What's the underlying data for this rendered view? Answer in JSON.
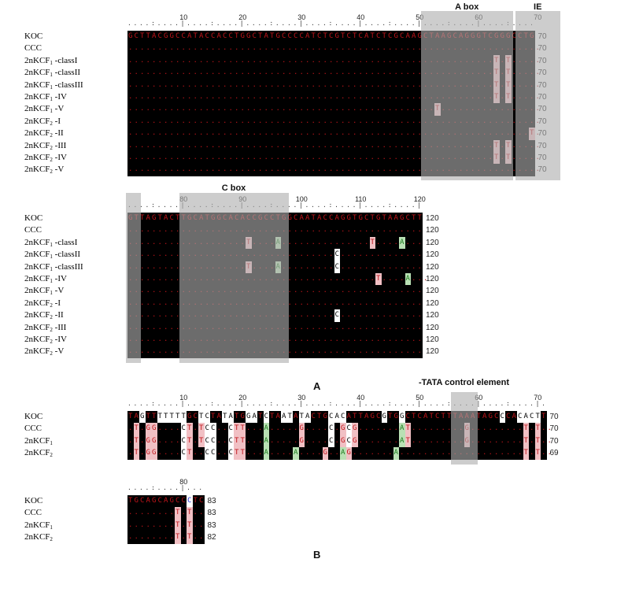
{
  "panel_a": {
    "label": "A",
    "blocks": [
      {
        "id": "a1",
        "ruler_numbers": [
          "10",
          "20",
          "30",
          "40",
          "50",
          "60",
          "70"
        ],
        "regions": [
          {
            "label": "A box",
            "start": 51,
            "end": 65
          },
          {
            "label": "IE",
            "start": 67,
            "end": 73
          }
        ],
        "rows": [
          {
            "name": "KOC",
            "sub": "",
            "suffix": "",
            "seq": "GCTTACGGCCATACCACCTGGCTATGCCCCATCTCGTCTCATCTCGCAAGCTAAGCAGGGTCGGGCCTG",
            "end": "70"
          },
          {
            "name": "CCC",
            "sub": "",
            "suffix": "",
            "seq": "......................................................................",
            "end": "70"
          },
          {
            "name": "2nKCF",
            "sub": "1",
            "suffix": " -classI",
            "seq": "..............................................................T.T.....",
            "end": "70"
          },
          {
            "name": "2nKCF",
            "sub": "1",
            "suffix": " -classII",
            "seq": "..............................................................T.T.....",
            "end": "70"
          },
          {
            "name": "2nKCF",
            "sub": "1",
            "suffix": " -classIII",
            "seq": "..............................................................T.T.....",
            "end": "70"
          },
          {
            "name": "2nKCF",
            "sub": "1",
            "suffix": " -IV",
            "seq": "..............................................................T.T.....",
            "end": "70"
          },
          {
            "name": "2nKCF",
            "sub": "1",
            "suffix": " -V",
            "seq": "....................................................T.................",
            "end": "70"
          },
          {
            "name": "2nKCF",
            "sub": "2",
            "suffix": " -I",
            "seq": "......................................................................",
            "end": "70"
          },
          {
            "name": "2nKCF",
            "sub": "2",
            "suffix": " -II",
            "seq": "....................................................................T.",
            "end": "70"
          },
          {
            "name": "2nKCF",
            "sub": "2",
            "suffix": " -III",
            "seq": "..............................................................T.T.....",
            "end": "70"
          },
          {
            "name": "2nKCF",
            "sub": "2",
            "suffix": " -IV",
            "seq": "..............................................................T.T.....",
            "end": "70"
          },
          {
            "name": "2nKCF",
            "sub": "2",
            "suffix": " -V",
            "seq": "......................................................................",
            "end": "70"
          }
        ]
      },
      {
        "id": "a2",
        "ruler_numbers": [
          "80",
          "90",
          "100",
          "110",
          "120"
        ],
        "regions": [
          {
            "label": "",
            "start": 71,
            "end": 72
          },
          {
            "label": "C box",
            "start": 80,
            "end": 97
          }
        ],
        "rows": [
          {
            "name": "KOC",
            "sub": "",
            "suffix": "",
            "seq": "GTTAGTACTTGCATGGCACACCGCCTGGCAATACCAGGTGCTGTAAGCTT",
            "end": "120"
          },
          {
            "name": "CCC",
            "sub": "",
            "suffix": "",
            "seq": "..................................................",
            "end": "120"
          },
          {
            "name": "2nKCF",
            "sub": "1",
            "suffix": " -classI",
            "seq": "....................T....A...............T....A...",
            "end": "120"
          },
          {
            "name": "2nKCF",
            "sub": "1",
            "suffix": " -classII",
            "seq": "...................................C..............",
            "end": "120"
          },
          {
            "name": "2nKCF",
            "sub": "1",
            "suffix": " -classIII",
            "seq": "....................T....A.........C..............",
            "end": "120"
          },
          {
            "name": "2nKCF",
            "sub": "1",
            "suffix": " -IV",
            "seq": "..........................................T....A...",
            "end": "120"
          },
          {
            "name": "2nKCF",
            "sub": "1",
            "suffix": " -V",
            "seq": "..................................................",
            "end": "120"
          },
          {
            "name": "2nKCF",
            "sub": "2",
            "suffix": " -I",
            "seq": "..................................................",
            "end": "120"
          },
          {
            "name": "2nKCF",
            "sub": "2",
            "suffix": " -II",
            "seq": "...................................C..............",
            "end": "120"
          },
          {
            "name": "2nKCF",
            "sub": "2",
            "suffix": " -III",
            "seq": "..................................................",
            "end": "120"
          },
          {
            "name": "2nKCF",
            "sub": "2",
            "suffix": " -IV",
            "seq": "..................................................",
            "end": "120"
          },
          {
            "name": "2nKCF",
            "sub": "2",
            "suffix": " -V",
            "seq": "..................................................",
            "end": "120"
          }
        ]
      }
    ]
  },
  "panel_b": {
    "label": "B",
    "blocks": [
      {
        "id": "b1",
        "ruler_numbers": [
          "10",
          "20",
          "30",
          "40",
          "50",
          "60",
          "70"
        ],
        "regions": [
          {
            "label": "-TATA control element",
            "start": 56,
            "end": 59
          }
        ],
        "rows": [
          {
            "name": "KOC",
            "sub": "",
            "suffix": "",
            "seq": "TAGTTTTTTTGCTCTATATGGATCTAATATACTGCACATTAGCGTGGCTCATCTTTAAATAGCCCACACTT",
            "end": "70"
          },
          {
            "name": "CCC",
            "sub": "",
            "suffix": "",
            "seq": ".T.GG....CT.TCC..CTT...A.....G....C.GCG.......AT.........G.........T.T..",
            "end": "70"
          },
          {
            "name": "2nKCF",
            "sub": "1",
            "suffix": "",
            "seq": ".T.GG....CT.TCC..CTT...A.....G....C.GCG.......AT.........G.........T.T..",
            "end": "70"
          },
          {
            "name": "2nKCF",
            "sub": "2",
            "suffix": "",
            "seq": ".T.GG....CT..CC..CTT...A....A....G..AG.......A.....................T.T..",
            "end": "69"
          }
        ]
      },
      {
        "id": "b2",
        "ruler_numbers": [
          "80"
        ],
        "regions": [],
        "rows": [
          {
            "name": "KOC",
            "sub": "",
            "suffix": "",
            "seq": "TGCAGCAGCCCTC",
            "end": "83"
          },
          {
            "name": "CCC",
            "sub": "",
            "suffix": "",
            "seq": "........T.T..",
            "end": "83"
          },
          {
            "name": "2nKCF",
            "sub": "1",
            "suffix": "",
            "seq": "........T.T..",
            "end": "83"
          },
          {
            "name": "2nKCF",
            "sub": "2",
            "suffix": "",
            "seq": "........T.T..",
            "end": "82"
          }
        ]
      }
    ]
  },
  "colors": {
    "background_seq": "#000000",
    "base": "#c0141a",
    "highlight_pink": "#f1c0c4",
    "highlight_green": "#b9e0b4",
    "shade": "#afafaf"
  }
}
